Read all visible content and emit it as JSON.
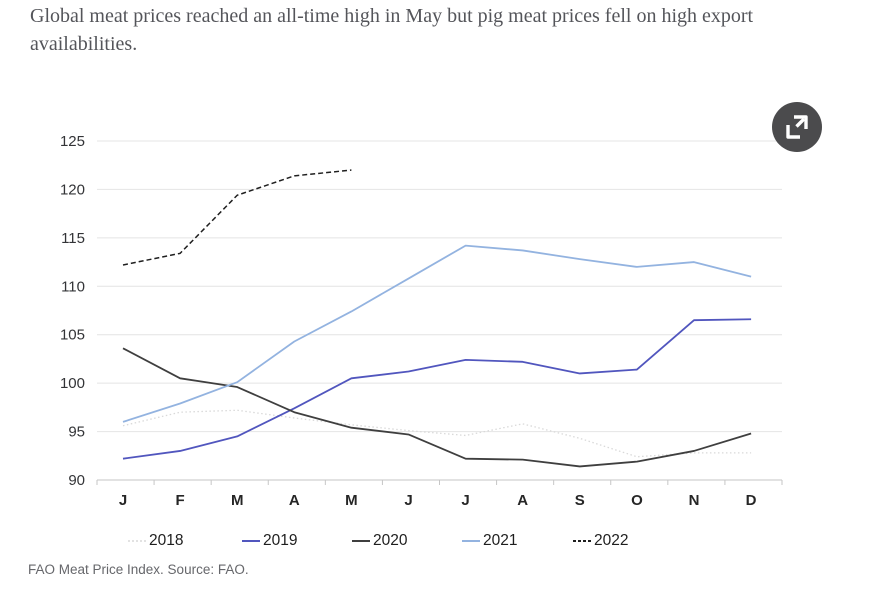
{
  "header": {
    "title": "Global meat prices reached an all-time high in May but pig meat prices fell on high export availabilities."
  },
  "footer": {
    "source": "FAO Meat Price Index. Source: FAO."
  },
  "icons": {
    "expand": "expand-icon"
  },
  "chart_data": {
    "type": "line",
    "title": "",
    "xlabel": "",
    "ylabel": "",
    "x_categories": [
      "J",
      "F",
      "M",
      "A",
      "M",
      "J",
      "J",
      "A",
      "S",
      "O",
      "N",
      "D"
    ],
    "ylim": [
      90,
      125
    ],
    "yticks": [
      90,
      95,
      100,
      105,
      110,
      115,
      120,
      125
    ],
    "grid": "horizontal",
    "legend_position": "bottom",
    "series": [
      {
        "name": "2018",
        "color": "#d9d9d9",
        "style": "dotted",
        "values": [
          95.6,
          97.0,
          97.2,
          96.4,
          95.7,
          95.1,
          94.6,
          95.8,
          94.3,
          92.4,
          92.8,
          92.8
        ]
      },
      {
        "name": "2019",
        "color": "#5156be",
        "style": "solid",
        "values": [
          92.2,
          93.0,
          94.5,
          97.4,
          100.5,
          101.2,
          102.4,
          102.2,
          101.0,
          101.4,
          106.5,
          106.6
        ]
      },
      {
        "name": "2020",
        "color": "#3f3f3f",
        "style": "solid",
        "values": [
          103.6,
          100.5,
          99.6,
          97.0,
          95.4,
          94.7,
          92.2,
          92.1,
          91.4,
          91.9,
          93.0,
          94.8
        ]
      },
      {
        "name": "2021",
        "color": "#93b3e0",
        "style": "solid",
        "values": [
          96.0,
          97.9,
          100.1,
          104.3,
          107.4,
          110.8,
          114.2,
          113.7,
          112.8,
          112.0,
          112.5,
          111.0
        ]
      },
      {
        "name": "2022",
        "color": "#1f1f1f",
        "style": "dashed",
        "values": [
          112.2,
          113.4,
          119.4,
          121.4,
          122.0
        ]
      }
    ]
  }
}
